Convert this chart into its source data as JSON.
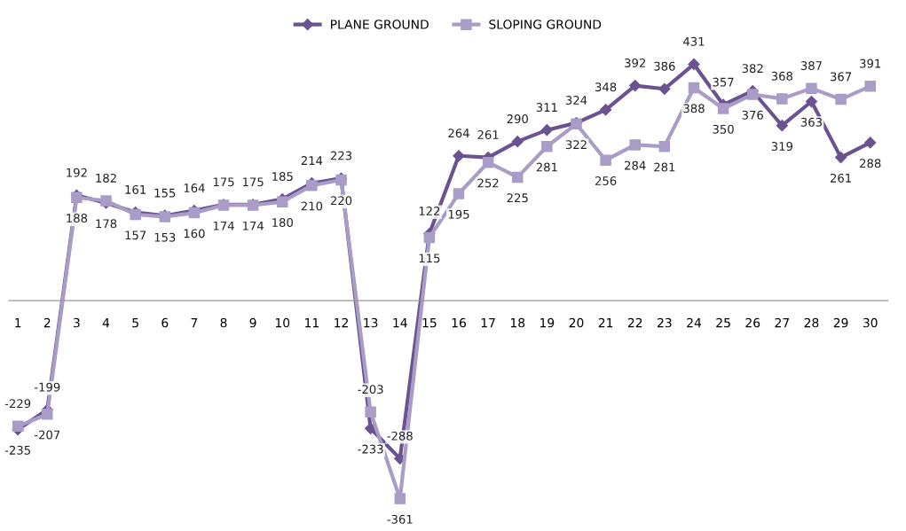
{
  "chart_data": {
    "type": "line",
    "categories": [
      "1",
      "2",
      "3",
      "4",
      "5",
      "6",
      "7",
      "8",
      "9",
      "10",
      "11",
      "12",
      "13",
      "14",
      "15",
      "16",
      "17",
      "18",
      "19",
      "20",
      "21",
      "22",
      "23",
      "24",
      "25",
      "26",
      "27",
      "28",
      "29",
      "30"
    ],
    "series": [
      {
        "name": "PLANE GROUND",
        "color": "#6b5290",
        "marker": "diamond",
        "values": [
          -235,
          -199,
          192,
          178,
          161,
          155,
          164,
          175,
          175,
          185,
          214,
          223,
          -233,
          -288,
          122,
          264,
          261,
          290,
          311,
          324,
          348,
          392,
          386,
          431,
          357,
          382,
          319,
          363,
          261,
          288
        ]
      },
      {
        "name": "SLOPING GROUND",
        "color": "#a99cc6",
        "marker": "square",
        "values": [
          -229,
          -207,
          188,
          182,
          157,
          153,
          160,
          174,
          174,
          180,
          210,
          220,
          -203,
          -361,
          115,
          195,
          252,
          225,
          281,
          322,
          256,
          284,
          281,
          388,
          350,
          376,
          368,
          387,
          367,
          391
        ]
      }
    ],
    "data_labels": true,
    "legend": "top",
    "grid": false
  }
}
